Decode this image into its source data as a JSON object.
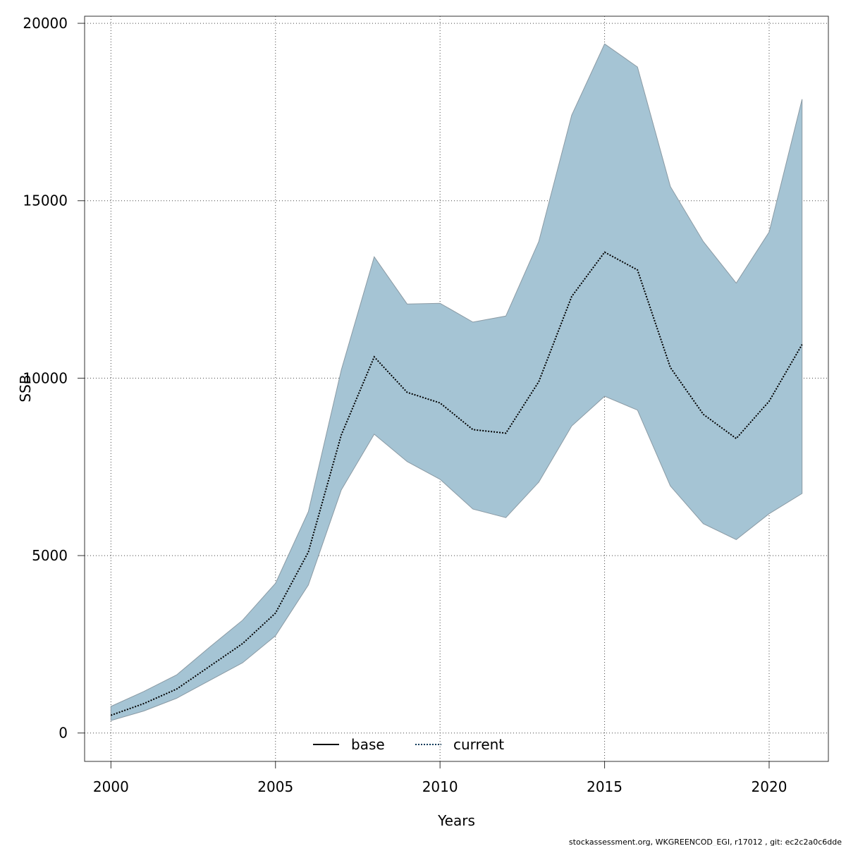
{
  "chart_data": {
    "type": "line",
    "xlabel": "Years",
    "ylabel": "SSB",
    "xlim": [
      1999.2,
      2021.8
    ],
    "ylim": [
      -800,
      20200
    ],
    "x_ticks": [
      2000,
      2005,
      2010,
      2015,
      2020
    ],
    "y_ticks": [
      0,
      5000,
      10000,
      15000,
      20000
    ],
    "grid": true,
    "legend_position": "bottom-center",
    "colors": {
      "band": "#a5c4d4",
      "band_edge": "#8a9aa4",
      "current": "#0b3a5a",
      "base": "#000000"
    },
    "x": [
      2000,
      2001,
      2002,
      2003,
      2004,
      2005,
      2006,
      2007,
      2008,
      2009,
      2010,
      2011,
      2012,
      2013,
      2014,
      2015,
      2016,
      2017,
      2018,
      2019,
      2020,
      2021
    ],
    "series": [
      {
        "name": "base",
        "style": "solid",
        "values": [
          500,
          830,
          1240,
          1880,
          2520,
          3380,
          5100,
          8400,
          10600,
          9600,
          9300,
          8550,
          8450,
          9900,
          12300,
          13550,
          13050,
          10300,
          8980,
          8300,
          9350,
          10950
        ]
      },
      {
        "name": "current",
        "style": "dotted",
        "values": [
          500,
          830,
          1240,
          1880,
          2520,
          3380,
          5100,
          8400,
          10600,
          9600,
          9300,
          8550,
          8450,
          9900,
          12300,
          13550,
          13050,
          10300,
          8980,
          8300,
          9350,
          10950
        ],
        "lower": [
          350,
          620,
          980,
          1480,
          1980,
          2740,
          4170,
          6850,
          8420,
          7650,
          7150,
          6310,
          6070,
          7070,
          8650,
          9490,
          9100,
          6960,
          5900,
          5450,
          6180,
          6750
        ],
        "upper": [
          750,
          1170,
          1640,
          2420,
          3180,
          4220,
          6240,
          10230,
          13420,
          12090,
          12110,
          11580,
          11750,
          13850,
          17410,
          19420,
          18770,
          15400,
          13850,
          12680,
          14120,
          17860
        ]
      }
    ]
  },
  "footer": {
    "credit": "stockassessment.org, WKGREENCOD_EGI, r17012 , git: ec2c2a0c6dde"
  }
}
